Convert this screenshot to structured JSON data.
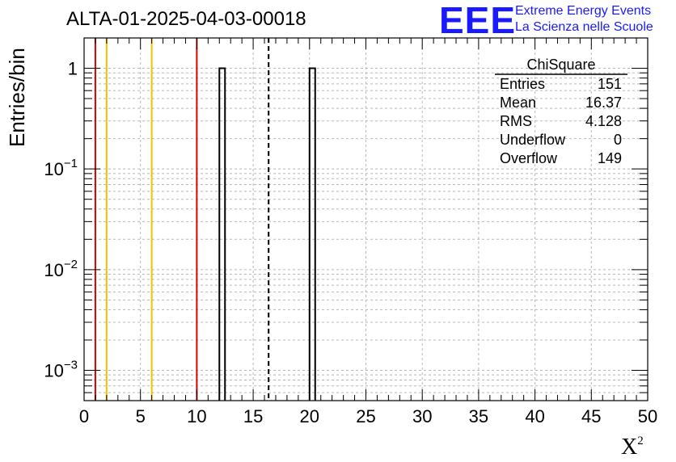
{
  "header": {
    "title": "ALTA-01-2025-04-03-00018",
    "logo": {
      "mark": "EEE",
      "line1": "Extreme Energy Events",
      "line2": "La Scienza nelle Scuole",
      "color": "#1a1aff"
    }
  },
  "chart_data": {
    "type": "bar",
    "title": "ALTA-01-2025-04-03-00018",
    "xlabel": "X",
    "xlabel_sup": "2",
    "ylabel": "Entries/bin",
    "xlim": [
      0,
      50
    ],
    "ylim": [
      0.0005,
      2
    ],
    "yscale": "log",
    "grid": true,
    "x_ticks": [
      0,
      5,
      10,
      15,
      20,
      25,
      30,
      35,
      40,
      45,
      50
    ],
    "y_ticks": [
      {
        "value": 0.001,
        "base": "10",
        "exp": "−3"
      },
      {
        "value": 0.01,
        "base": "10",
        "exp": "−2"
      },
      {
        "value": 0.1,
        "base": "10",
        "exp": "−1"
      },
      {
        "value": 1,
        "label": "1"
      }
    ],
    "bins": [
      {
        "x0": 12.0,
        "x1": 12.5,
        "value": 1
      },
      {
        "x0": 20.0,
        "x1": 20.5,
        "value": 1
      }
    ],
    "reference_lines": [
      {
        "x": 1,
        "color": "#dd0000",
        "style": "solid"
      },
      {
        "x": 2,
        "color": "#f2c200",
        "style": "solid"
      },
      {
        "x": 6,
        "color": "#f2c200",
        "style": "solid"
      },
      {
        "x": 10,
        "color": "#dd0000",
        "style": "solid"
      },
      {
        "x": 16.37,
        "color": "#000000",
        "style": "dashed"
      }
    ],
    "stats_box": {
      "name": "ChiSquare",
      "rows": [
        {
          "label": "Entries",
          "value": "151"
        },
        {
          "label": "Mean",
          "value": "16.37"
        },
        {
          "label": "RMS",
          "value": "4.128"
        },
        {
          "label": "Underflow",
          "value": "0"
        },
        {
          "label": "Overflow",
          "value": "149"
        }
      ]
    }
  }
}
